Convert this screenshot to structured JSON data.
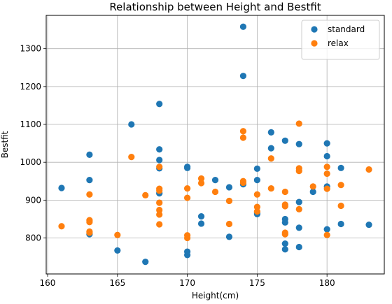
{
  "chart_data": {
    "type": "scatter",
    "title": "Relationship between Height and Bestfit",
    "xlabel": "Height(cm)",
    "ylabel": "Bestfit",
    "xlim": [
      159.9,
      184.1
    ],
    "ylim": [
      705,
      1388
    ],
    "xticks": [
      160,
      165,
      170,
      175,
      180
    ],
    "yticks": [
      800,
      900,
      1000,
      1100,
      1200,
      1300
    ],
    "grid": true,
    "legend_position": "top-right",
    "series": [
      {
        "name": "standard",
        "color": "#1f77b4",
        "points": [
          [
            161,
            932
          ],
          [
            163,
            1020
          ],
          [
            163,
            953
          ],
          [
            163,
            810
          ],
          [
            165,
            767
          ],
          [
            166,
            1100
          ],
          [
            167,
            737
          ],
          [
            168,
            1154
          ],
          [
            168,
            1034
          ],
          [
            168,
            1006
          ],
          [
            168,
            984
          ],
          [
            168,
            918
          ],
          [
            170,
            988
          ],
          [
            170,
            985
          ],
          [
            170,
            764
          ],
          [
            170,
            755
          ],
          [
            171,
            857
          ],
          [
            171,
            838
          ],
          [
            172,
            953
          ],
          [
            173,
            934
          ],
          [
            173,
            803
          ],
          [
            174,
            1358
          ],
          [
            174,
            1228
          ],
          [
            174,
            942
          ],
          [
            175,
            983
          ],
          [
            175,
            953
          ],
          [
            175,
            866
          ],
          [
            175,
            863
          ],
          [
            176,
            1079
          ],
          [
            176,
            1037
          ],
          [
            177,
            1057
          ],
          [
            177,
            850
          ],
          [
            177,
            841
          ],
          [
            177,
            785
          ],
          [
            177,
            770
          ],
          [
            178,
            1048
          ],
          [
            178,
            895
          ],
          [
            178,
            827
          ],
          [
            178,
            776
          ],
          [
            179,
            922
          ],
          [
            180,
            1050
          ],
          [
            180,
            1016
          ],
          [
            180,
            936
          ],
          [
            180,
            823
          ],
          [
            181,
            985
          ],
          [
            181,
            837
          ],
          [
            183,
            835
          ]
        ]
      },
      {
        "name": "relax",
        "color": "#ff7f0e",
        "points": [
          [
            161,
            831
          ],
          [
            163,
            915
          ],
          [
            163,
            847
          ],
          [
            163,
            842
          ],
          [
            163,
            817
          ],
          [
            163,
            814
          ],
          [
            165,
            808
          ],
          [
            166,
            1014
          ],
          [
            167,
            913
          ],
          [
            168,
            988
          ],
          [
            168,
            930
          ],
          [
            168,
            925
          ],
          [
            168,
            893
          ],
          [
            168,
            874
          ],
          [
            168,
            862
          ],
          [
            168,
            836
          ],
          [
            170,
            931
          ],
          [
            170,
            906
          ],
          [
            170,
            807
          ],
          [
            170,
            800
          ],
          [
            171,
            957
          ],
          [
            171,
            945
          ],
          [
            172,
            922
          ],
          [
            173,
            898
          ],
          [
            173,
            837
          ],
          [
            174,
            1082
          ],
          [
            174,
            1065
          ],
          [
            174,
            950
          ],
          [
            174,
            946
          ],
          [
            175,
            915
          ],
          [
            175,
            882
          ],
          [
            175,
            870
          ],
          [
            176,
            1010
          ],
          [
            176,
            931
          ],
          [
            177,
            922
          ],
          [
            177,
            888
          ],
          [
            177,
            884
          ],
          [
            177,
            814
          ],
          [
            177,
            810
          ],
          [
            178,
            1102
          ],
          [
            178,
            984
          ],
          [
            178,
            977
          ],
          [
            178,
            876
          ],
          [
            179,
            936
          ],
          [
            180,
            988
          ],
          [
            180,
            970
          ],
          [
            180,
            930
          ],
          [
            180,
            808
          ],
          [
            181,
            940
          ],
          [
            181,
            885
          ],
          [
            183,
            981
          ]
        ]
      }
    ]
  }
}
